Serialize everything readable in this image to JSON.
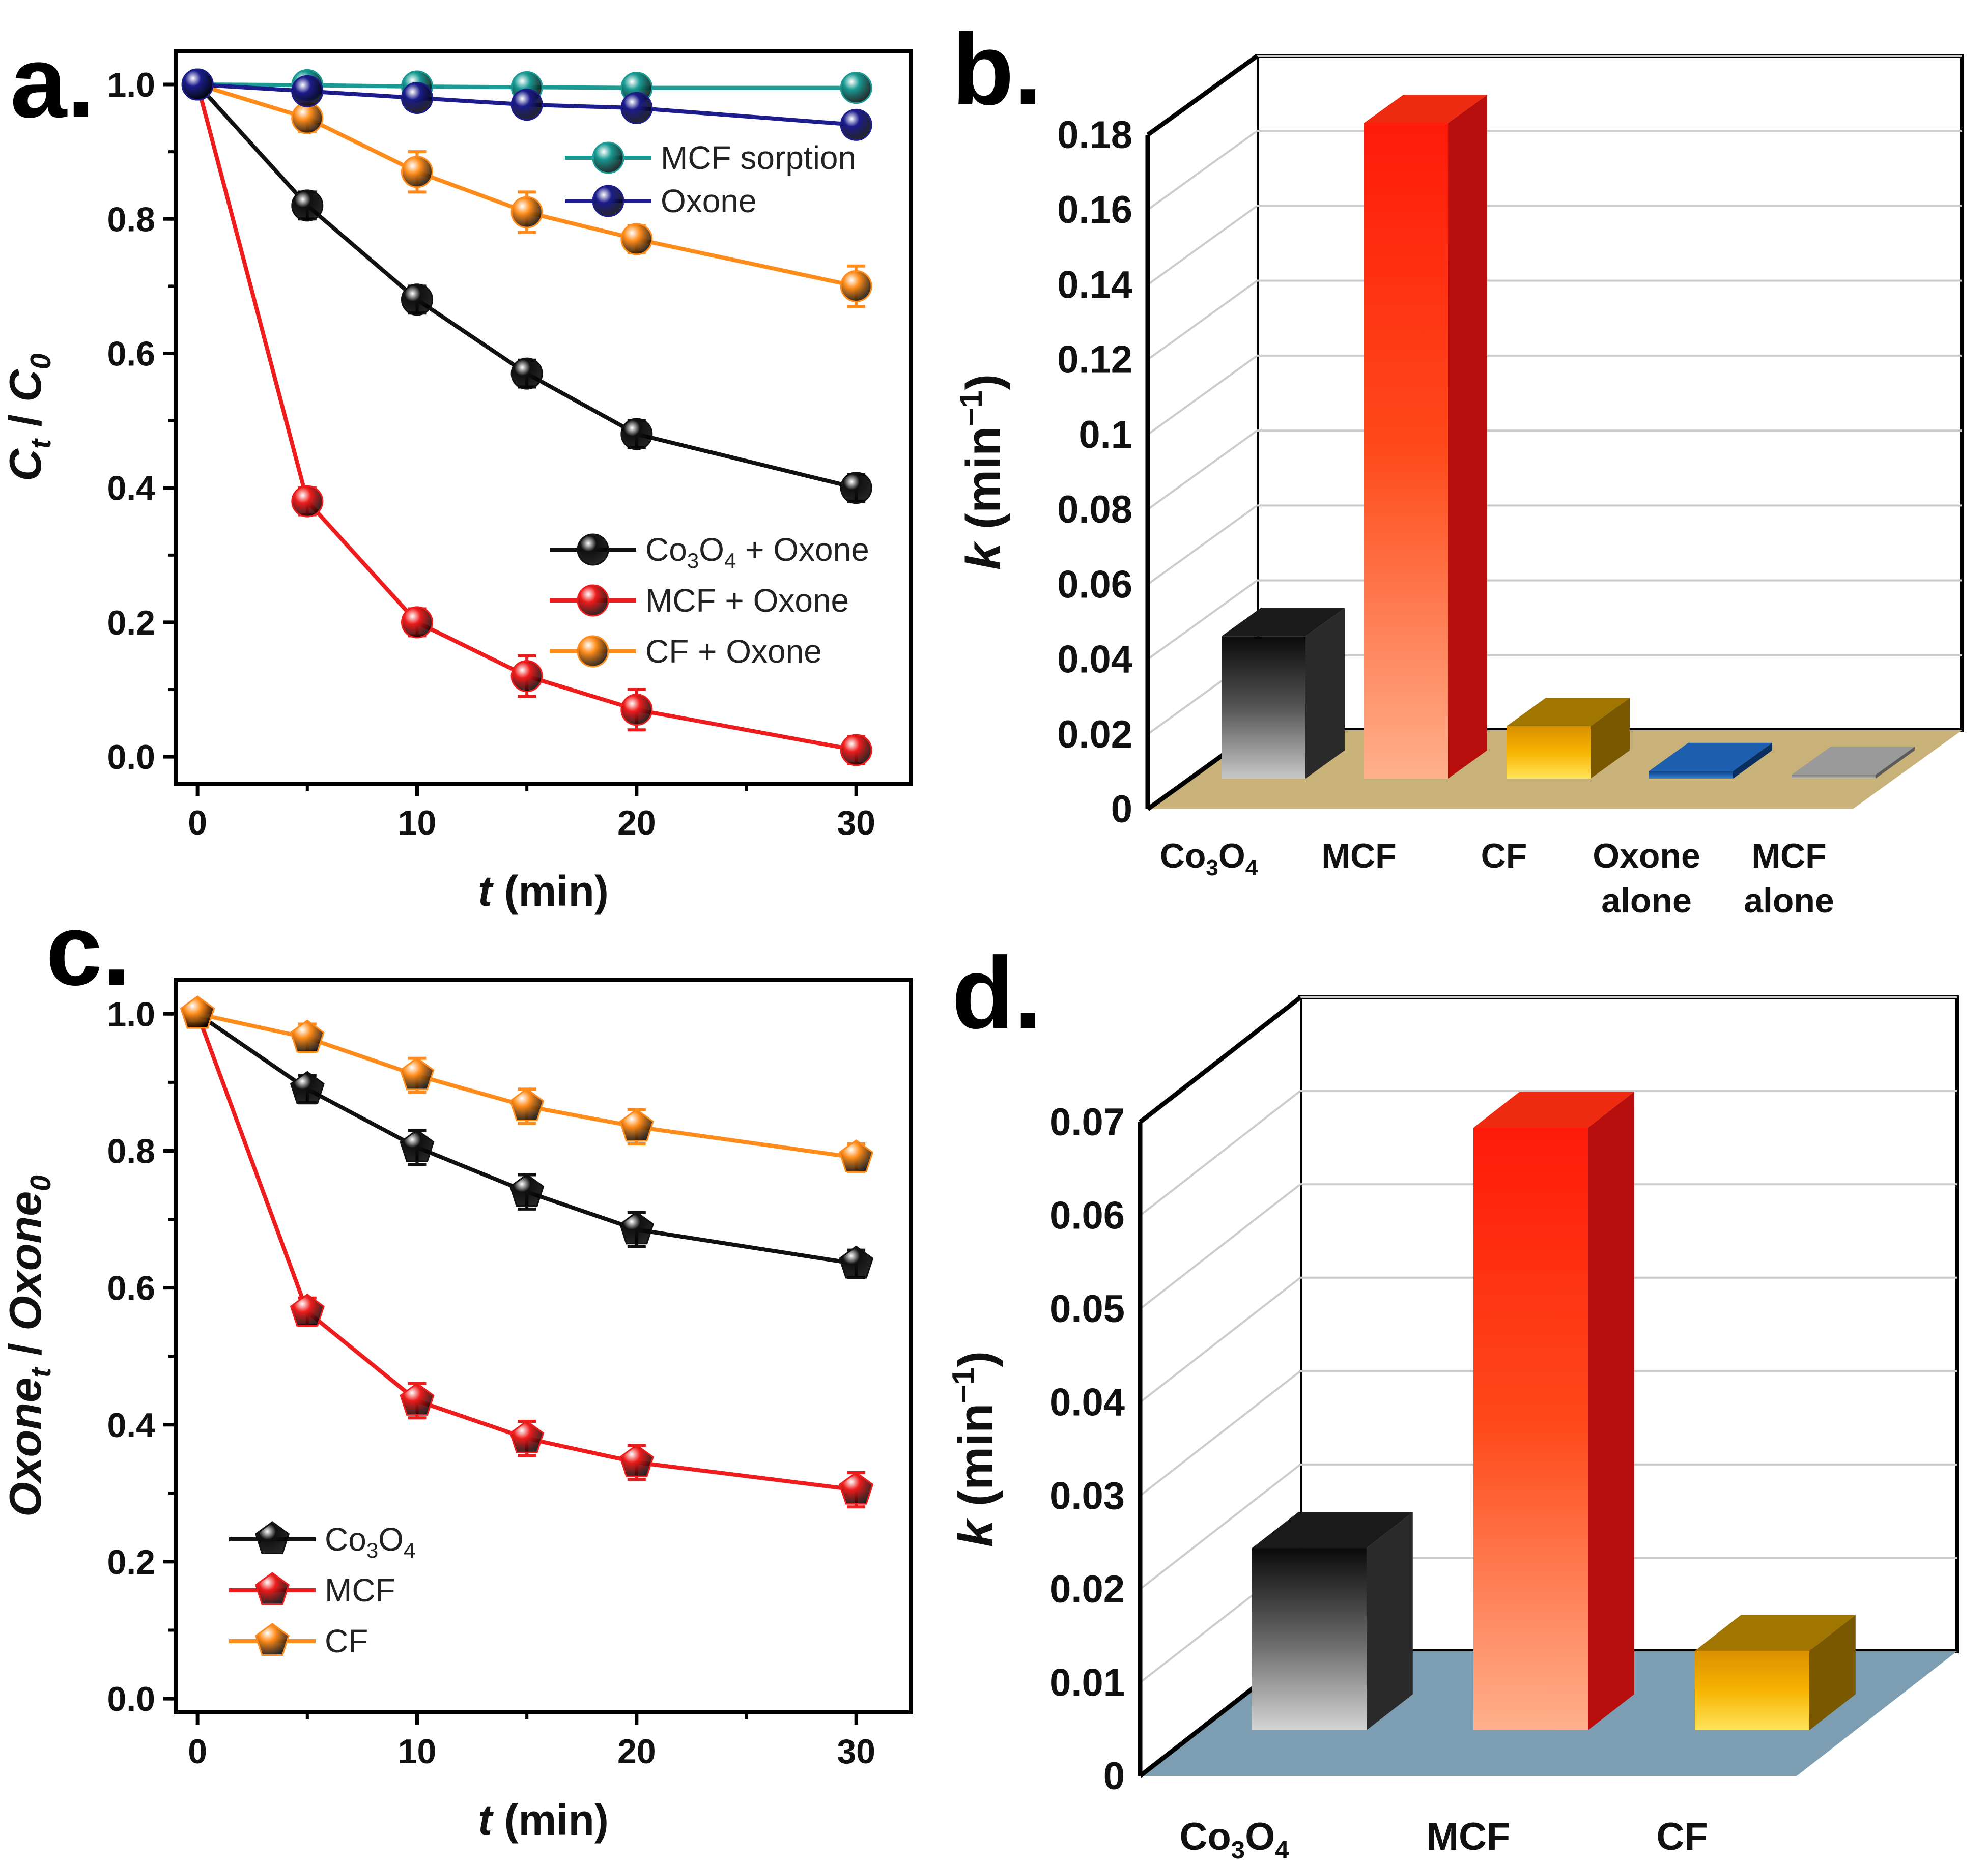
{
  "chart_data": [
    {
      "panel": "a.",
      "type": "line",
      "xlabel": {
        "italic": "t",
        "rest": " (min)"
      },
      "ylabel": {
        "parts": [
          [
            "C",
            false,
            true
          ],
          [
            "t",
            true,
            true
          ],
          [
            " / ",
            false,
            false
          ],
          [
            "C",
            false,
            true
          ],
          [
            "0",
            true,
            true
          ]
        ]
      },
      "xlim": [
        -1,
        32.5
      ],
      "ylim": [
        -0.04,
        1.05
      ],
      "xticks": [
        "0",
        "10",
        "20",
        "30"
      ],
      "yticks": [
        "0.0",
        "0.2",
        "0.4",
        "0.6",
        "0.8",
        "1.0"
      ],
      "marker": "sphere",
      "x": [
        0,
        5,
        10,
        15,
        20,
        30
      ],
      "series": [
        {
          "name": "Co3O4 + Oxone",
          "label_parts": [
            [
              "Co",
              false
            ],
            [
              "3",
              true
            ],
            [
              "O",
              false
            ],
            [
              "4",
              true
            ],
            [
              " + Oxone",
              false
            ]
          ],
          "color": "#111111",
          "values": [
            1.0,
            0.82,
            0.68,
            0.57,
            0.48,
            0.4
          ],
          "errors": [
            0.01,
            0.02,
            0.02,
            0.02,
            0.02,
            0.02
          ]
        },
        {
          "name": "MCF + Oxone",
          "label_parts": [
            [
              "MCF + Oxone",
              false
            ]
          ],
          "color": "#ee1c1c",
          "values": [
            1.0,
            0.38,
            0.2,
            0.12,
            0.07,
            0.01
          ],
          "errors": [
            0.01,
            0.02,
            0.02,
            0.03,
            0.03,
            0.02
          ]
        },
        {
          "name": "CF + Oxone",
          "label_parts": [
            [
              "CF + Oxone",
              false
            ]
          ],
          "color": "#ff8c1a",
          "values": [
            1.0,
            0.95,
            0.87,
            0.81,
            0.77,
            0.7
          ],
          "errors": [
            0.01,
            0.02,
            0.03,
            0.03,
            0.02,
            0.03
          ]
        },
        {
          "name": "MCF sorption",
          "label_parts": [
            [
              "MCF sorption",
              false
            ]
          ],
          "color": "#199a93",
          "values": [
            1.0,
            0.999,
            0.997,
            0.996,
            0.995,
            0.995
          ],
          "errors": [
            0,
            0,
            0,
            0,
            0,
            0
          ]
        },
        {
          "name": "Oxone",
          "label_parts": [
            [
              "Oxone",
              false
            ]
          ],
          "color": "#1c1c8c",
          "values": [
            1.0,
            0.99,
            0.98,
            0.97,
            0.965,
            0.94
          ],
          "errors": [
            0,
            0,
            0,
            0,
            0,
            0
          ]
        }
      ],
      "legends": [
        {
          "placement": "top-right",
          "series": [
            "MCF sorption",
            "Oxone"
          ]
        },
        {
          "placement": "center-right",
          "series": [
            "Co3O4 + Oxone",
            "MCF + Oxone",
            "CF + Oxone"
          ]
        }
      ]
    },
    {
      "panel": "b.",
      "type": "bar",
      "style": "3d",
      "ylabel": {
        "italic": "k",
        "rest": " (min",
        "sup": "−1",
        "close": ")"
      },
      "ylim": [
        0,
        0.18
      ],
      "yticks": [
        "0",
        "0.02",
        "0.04",
        "0.06",
        "0.08",
        "0.1",
        "0.12",
        "0.14",
        "0.16",
        "0.18"
      ],
      "grid": true,
      "floor_color": "#c9b27a",
      "categories": [
        {
          "lines": [
            [
              [
                "Co",
                false
              ],
              [
                "3",
                true
              ],
              [
                "O",
                false
              ],
              [
                "4",
                true
              ]
            ]
          ]
        },
        {
          "lines": [
            [
              [
                "MCF",
                false
              ]
            ]
          ]
        },
        {
          "lines": [
            [
              [
                "CF",
                false
              ]
            ]
          ]
        },
        {
          "lines": [
            [
              [
                "Oxone",
                false
              ]
            ],
            [
              [
                "alone",
                false
              ]
            ]
          ]
        },
        {
          "lines": [
            [
              [
                "MCF",
                false
              ]
            ],
            [
              [
                "alone",
                false
              ]
            ]
          ]
        }
      ],
      "values": [
        0.038,
        0.175,
        0.014,
        0.002,
        0.001
      ],
      "colors": [
        {
          "light": "#c8c8c8",
          "mid": "#555555",
          "dark": "#0a0a0a",
          "side": "#2a2a2a",
          "top": "#1a1a1a"
        },
        {
          "light": "#ffb08c",
          "mid": "#ff4a1a",
          "dark": "#ff1a0a",
          "side": "#b80e0e",
          "top": "#ee2a10"
        },
        {
          "light": "#ffe45a",
          "mid": "#f7b400",
          "dark": "#d99000",
          "side": "#7a5800",
          "top": "#a07600"
        },
        {
          "light": "#3a84d0",
          "mid": "#1d5fae",
          "dark": "#0f3f80",
          "side": "#0a2f60",
          "top": "#1d5fae"
        },
        {
          "light": "#bdbdbd",
          "mid": "#9a9a9a",
          "dark": "#7a7a7a",
          "side": "#5a5a5a",
          "top": "#9a9a9a"
        }
      ]
    },
    {
      "panel": "c.",
      "type": "line",
      "xlabel": {
        "italic": "t",
        "rest": " (min)"
      },
      "ylabel": {
        "parts": [
          [
            "Oxone",
            false,
            true
          ],
          [
            "t",
            true,
            true
          ],
          [
            " / ",
            false,
            false
          ],
          [
            "Oxone",
            false,
            true
          ],
          [
            "0",
            true,
            true
          ]
        ]
      },
      "xlim": [
        -1,
        32.5
      ],
      "ylim": [
        -0.02,
        1.05
      ],
      "xticks": [
        "0",
        "10",
        "20",
        "30"
      ],
      "yticks": [
        "0.0",
        "0.2",
        "0.4",
        "0.6",
        "0.8",
        "1.0"
      ],
      "marker": "pentagon",
      "x": [
        0,
        5,
        10,
        15,
        20,
        30
      ],
      "series": [
        {
          "name": "Co3O4",
          "label_parts": [
            [
              "Co",
              false
            ],
            [
              "3",
              true
            ],
            [
              "O",
              false
            ],
            [
              "4",
              true
            ]
          ],
          "color": "#111111",
          "values": [
            1.0,
            0.89,
            0.805,
            0.74,
            0.685,
            0.635
          ],
          "errors": [
            0.01,
            0.02,
            0.025,
            0.025,
            0.025,
            0.02
          ]
        },
        {
          "name": "MCF",
          "label_parts": [
            [
              "MCF",
              false
            ]
          ],
          "color": "#ee1c1c",
          "values": [
            1.0,
            0.565,
            0.435,
            0.38,
            0.345,
            0.305
          ],
          "errors": [
            0.01,
            0.02,
            0.025,
            0.025,
            0.025,
            0.025
          ]
        },
        {
          "name": "CF",
          "label_parts": [
            [
              "CF",
              false
            ]
          ],
          "color": "#ff8c1a",
          "values": [
            1.0,
            0.965,
            0.91,
            0.865,
            0.835,
            0.79
          ],
          "errors": [
            0.01,
            0.02,
            0.025,
            0.025,
            0.025,
            0.02
          ]
        }
      ],
      "legends": [
        {
          "placement": "bottom-left",
          "series": [
            "Co3O4",
            "MCF",
            "CF"
          ]
        }
      ]
    },
    {
      "panel": "d.",
      "type": "bar",
      "style": "3d",
      "ylabel": {
        "italic": "k",
        "rest": " (min",
        "sup": "−1",
        "close": ")"
      },
      "ylim": [
        0,
        0.07
      ],
      "yticks": [
        "0",
        "0.01",
        "0.02",
        "0.03",
        "0.04",
        "0.05",
        "0.06",
        "0.07"
      ],
      "grid": true,
      "floor_color": "#7d9db3",
      "categories": [
        {
          "lines": [
            [
              [
                "Co",
                false
              ],
              [
                "3",
                true
              ],
              [
                "O",
                false
              ],
              [
                "4",
                true
              ]
            ]
          ]
        },
        {
          "lines": [
            [
              [
                "MCF",
                false
              ]
            ]
          ]
        },
        {
          "lines": [
            [
              [
                "CF",
                false
              ]
            ]
          ]
        }
      ],
      "values": [
        0.0195,
        0.0645,
        0.0085
      ],
      "colors": [
        {
          "light": "#d4d4d4",
          "mid": "#666666",
          "dark": "#0a0a0a",
          "side": "#2a2a2a",
          "top": "#1a1a1a"
        },
        {
          "light": "#ffb08c",
          "mid": "#ff4a1a",
          "dark": "#ff1a0a",
          "side": "#b80e0e",
          "top": "#ee2a10"
        },
        {
          "light": "#ffe45a",
          "mid": "#f7b400",
          "dark": "#d99000",
          "side": "#7a5800",
          "top": "#a07600"
        }
      ]
    }
  ]
}
